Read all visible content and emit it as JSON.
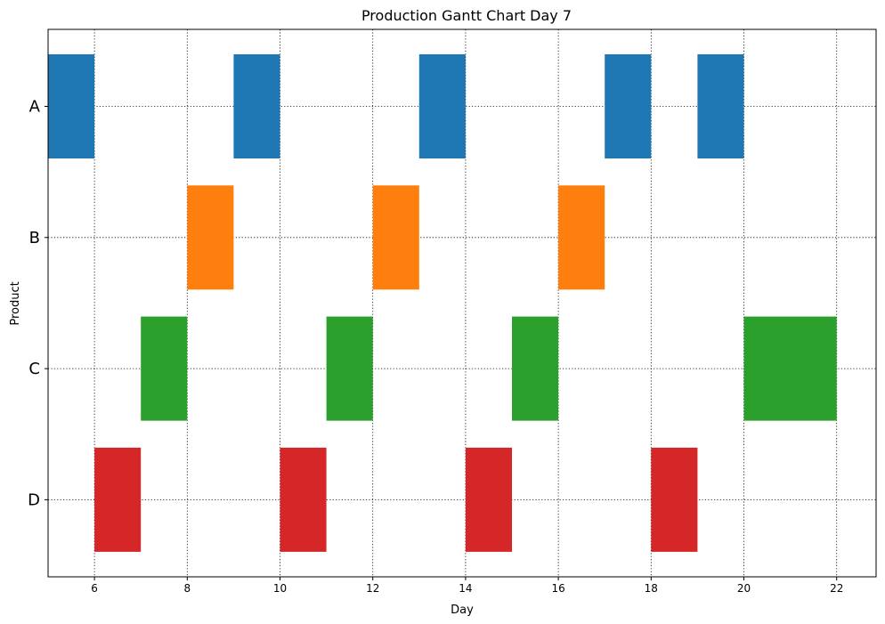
{
  "chart_data": {
    "type": "gantt",
    "title": "Production Gantt Chart Day 7",
    "xlabel": "Day",
    "ylabel": "Product",
    "xlim": [
      5,
      22.85
    ],
    "xticks": [
      6,
      8,
      10,
      12,
      14,
      16,
      18,
      20,
      22
    ],
    "categories": [
      "A",
      "B",
      "C",
      "D"
    ],
    "grid": true,
    "series": [
      {
        "name": "A",
        "color": "#1f77b4",
        "tasks": [
          [
            5,
            6
          ],
          [
            9,
            10
          ],
          [
            13,
            14
          ],
          [
            17,
            18
          ],
          [
            19,
            20
          ]
        ]
      },
      {
        "name": "B",
        "color": "#ff7f0e",
        "tasks": [
          [
            8,
            9
          ],
          [
            12,
            13
          ],
          [
            16,
            17
          ]
        ]
      },
      {
        "name": "C",
        "color": "#2ca02c",
        "tasks": [
          [
            7,
            8
          ],
          [
            11,
            12
          ],
          [
            15,
            16
          ],
          [
            20,
            22
          ]
        ]
      },
      {
        "name": "D",
        "color": "#d62728",
        "tasks": [
          [
            6,
            7
          ],
          [
            10,
            11
          ],
          [
            14,
            15
          ],
          [
            18,
            19
          ]
        ]
      }
    ]
  }
}
